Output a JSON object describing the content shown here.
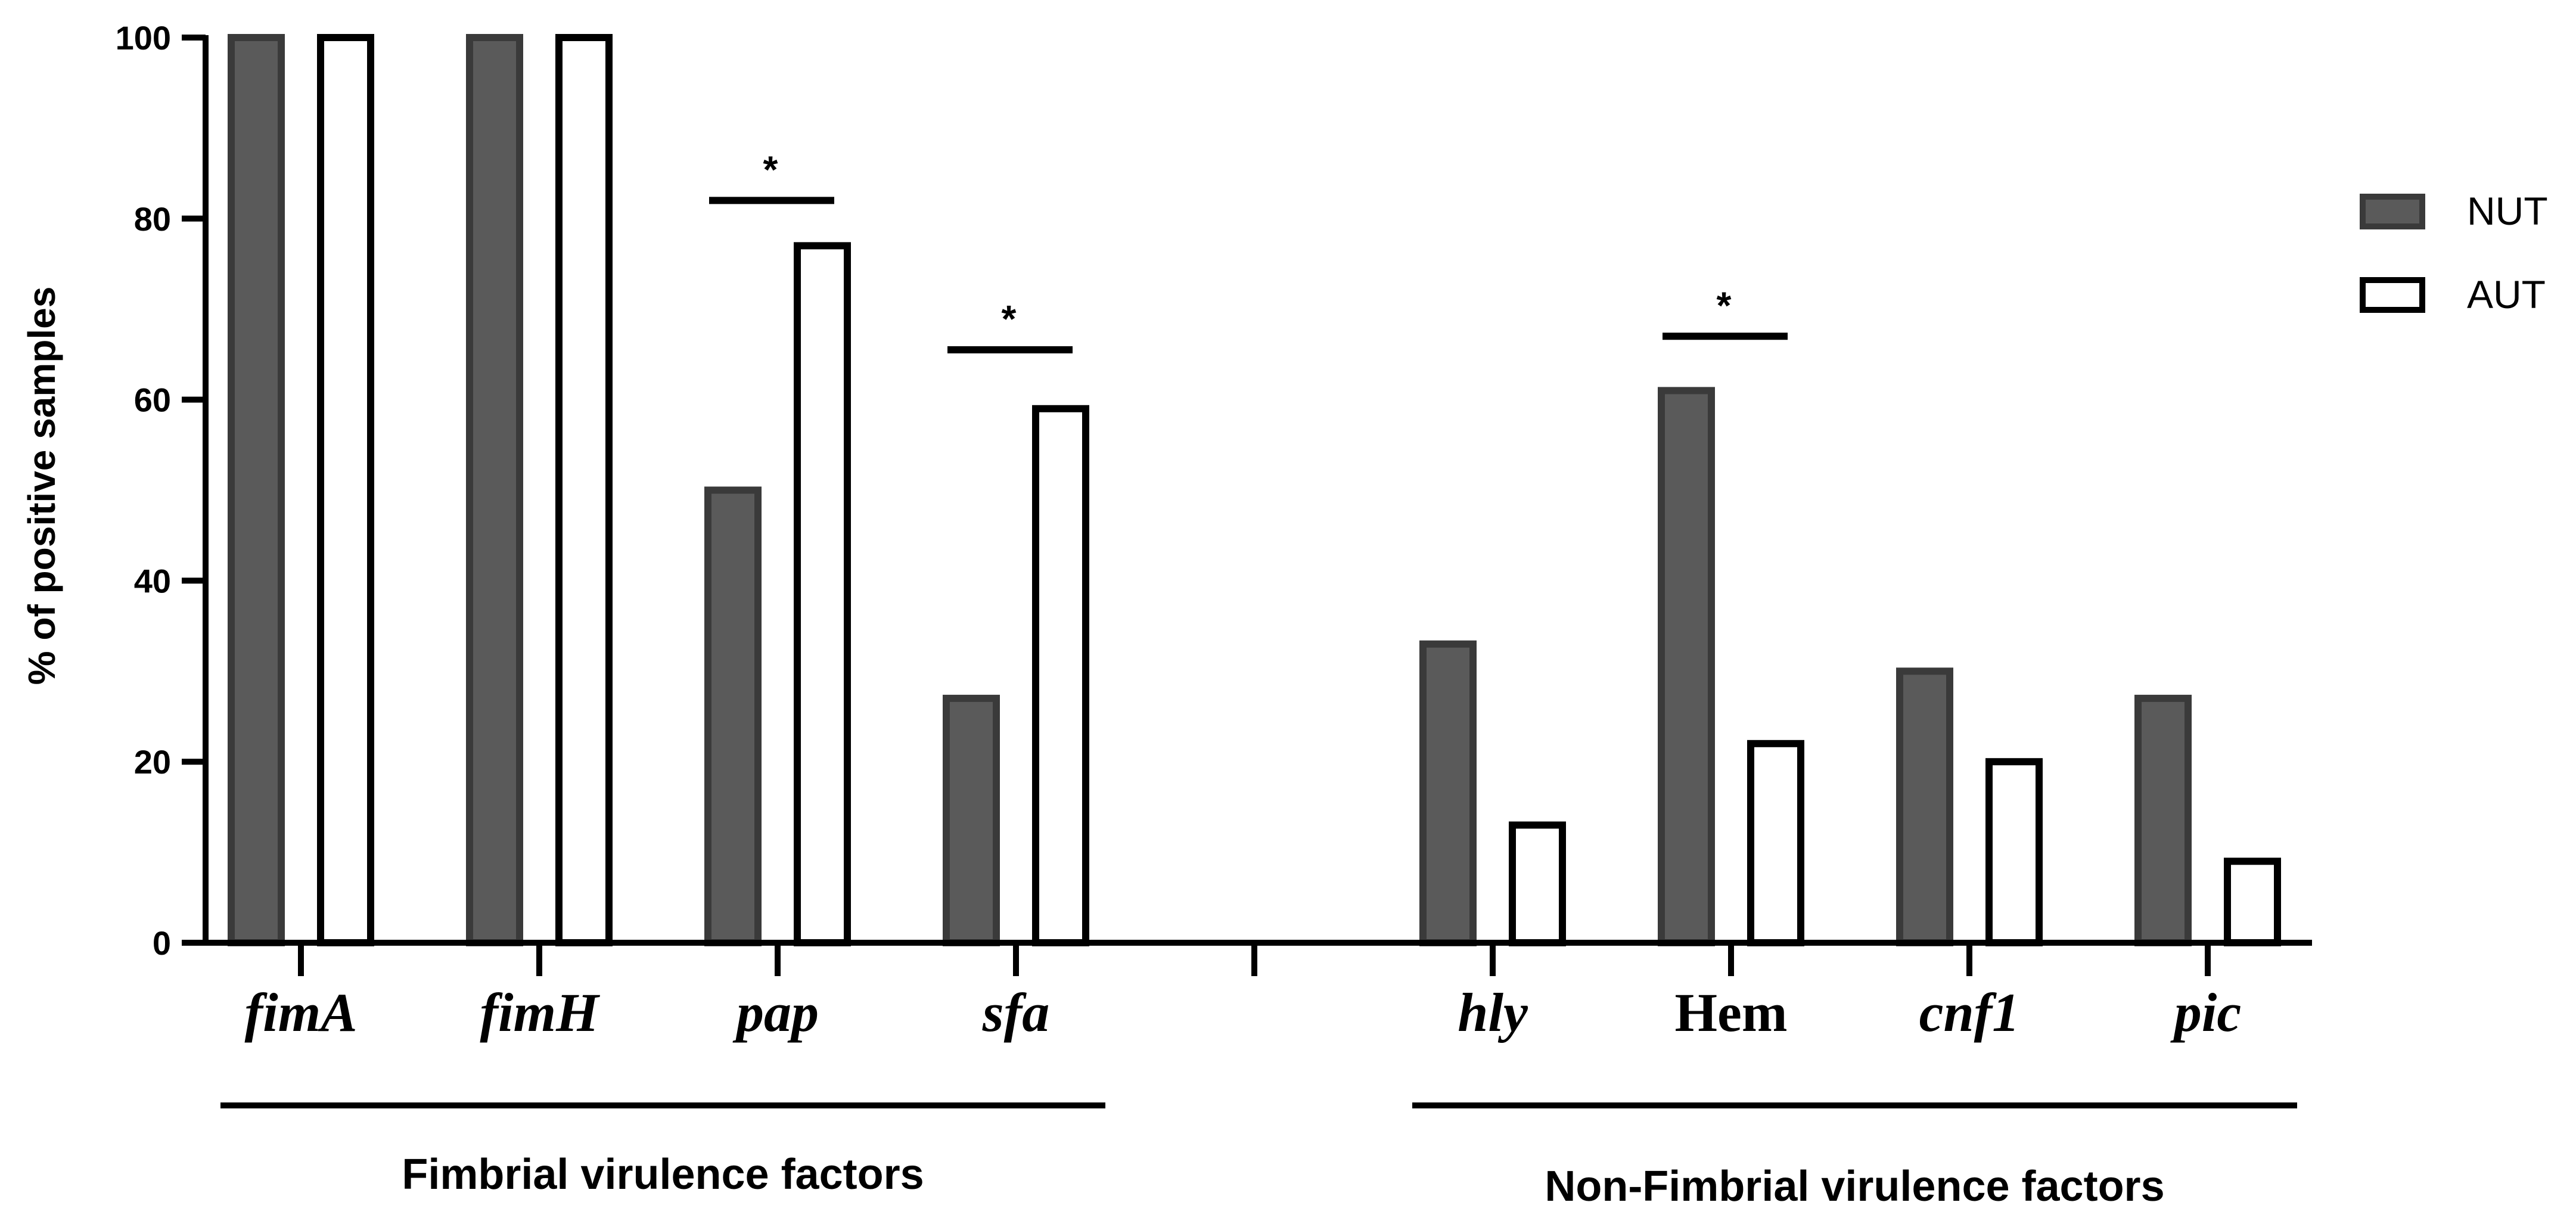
{
  "chart_data": {
    "type": "bar",
    "ylabel": "% of positive samples",
    "ylim": [
      0,
      100
    ],
    "yticks": [
      "0",
      "20",
      "40",
      "60",
      "80",
      "100"
    ],
    "categories": [
      {
        "label": "fimA",
        "italic": true
      },
      {
        "label": "fimH",
        "italic": true
      },
      {
        "label": "pap",
        "italic": true
      },
      {
        "label": "sfa",
        "italic": true
      },
      {
        "label": "hly",
        "italic": true
      },
      {
        "label": "Hem",
        "italic": false
      },
      {
        "label": "cnf1",
        "italic": true
      },
      {
        "label": "pic",
        "italic": true
      }
    ],
    "series": [
      {
        "name": "NUT",
        "values": [
          100,
          100,
          50,
          27,
          33,
          61,
          30,
          27
        ],
        "fill": "#5a5a5a",
        "stroke": "#3a3a3a"
      },
      {
        "name": "AUT",
        "values": [
          100,
          100,
          77,
          59,
          13,
          22,
          20,
          9
        ],
        "fill": "#ffffff",
        "stroke": "#000000"
      }
    ],
    "significance": [
      {
        "category": "pap",
        "marker": "*",
        "level": 82
      },
      {
        "category": "sfa",
        "marker": "*",
        "level": 65.5
      },
      {
        "category": "Hem",
        "marker": "*",
        "level": 67
      }
    ],
    "groups": [
      {
        "label": "Fimbrial virulence factors",
        "categories": [
          "fimA",
          "fimH",
          "pap",
          "sfa"
        ]
      },
      {
        "label": "Non-Fimbrial virulence factors",
        "categories": [
          "hly",
          "Hem",
          "cnf1",
          "pic"
        ]
      }
    ],
    "legend_position": "right"
  }
}
